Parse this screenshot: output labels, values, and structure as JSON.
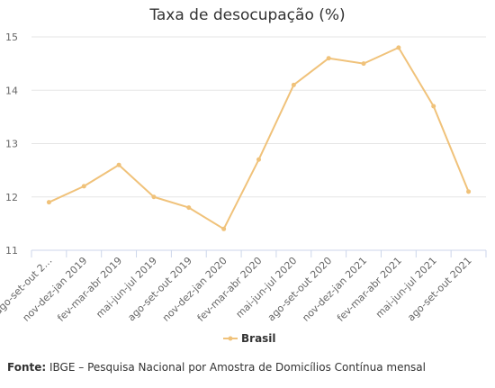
{
  "chart_data": {
    "type": "line",
    "title": "Taxa de desocupação (%)",
    "xlabel": "",
    "ylabel": "",
    "categories": [
      "ago-set-out 2…",
      "nov-dez-jan 2019",
      "fev-mar-abr 2019",
      "mai-jun-jul 2019",
      "ago-set-out 2019",
      "nov-dez-jan 2020",
      "fev-mar-abr 2020",
      "mai-jun-jul 2020",
      "ago-set-out 2020",
      "nov-dez-jan 2021",
      "fev-mar-abr 2021",
      "mai-jun-jul 2021",
      "ago-set-out 2021"
    ],
    "series": [
      {
        "name": "Brasil",
        "color": "#f0c27a",
        "values": [
          11.9,
          12.2,
          12.6,
          12.0,
          11.8,
          11.4,
          12.7,
          14.1,
          14.6,
          14.5,
          14.8,
          13.7,
          12.1
        ]
      }
    ],
    "ylim": [
      11,
      15
    ],
    "yticks": [
      11,
      12,
      13,
      14,
      15
    ],
    "grid": true,
    "legend_position": "bottom-center"
  },
  "source": {
    "label": "Fonte:",
    "text": "IBGE – Pesquisa Nacional por Amostra de Domicílios Contínua mensal"
  }
}
